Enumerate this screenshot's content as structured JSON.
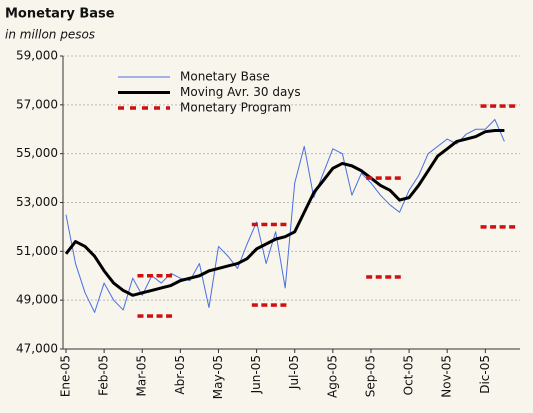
{
  "chart_data": {
    "type": "line",
    "title": "Monetary Base",
    "subtitle": "in millon pesos",
    "categories": [
      "Ene-05",
      null,
      null,
      null,
      "Feb-05",
      null,
      null,
      null,
      "Mar-05",
      null,
      null,
      null,
      "Abr-05",
      null,
      null,
      null,
      "May-05",
      null,
      null,
      null,
      "Jun-05",
      null,
      null,
      null,
      "Jul-05",
      null,
      null,
      null,
      "Ago-05",
      null,
      null,
      null,
      "Sep-05",
      null,
      null,
      null,
      "Oct-05",
      null,
      null,
      null,
      "Nov-05",
      null,
      null,
      null,
      "Dic-05",
      null,
      null,
      null
    ],
    "series": [
      {
        "name": "Monetary Base",
        "color": "#4a6fe0",
        "style": "thin",
        "values": [
          52500,
          50500,
          49300,
          48500,
          49700,
          49000,
          48600,
          49900,
          49200,
          50000,
          49700,
          50100,
          49900,
          49800,
          50500,
          48700,
          51200,
          50800,
          50300,
          51300,
          52200,
          50500,
          51800,
          49500,
          53800,
          55300,
          53200,
          54200,
          55200,
          55000,
          53300,
          54200,
          53800,
          53300,
          52900,
          52600,
          53500,
          54100,
          55000,
          55300,
          55600,
          55400,
          55800,
          56000,
          56000,
          56400,
          55500,
          null
        ]
      },
      {
        "name": "Moving Avr. 30 days",
        "color": "#000000",
        "style": "thick",
        "values": [
          50900,
          51400,
          51200,
          50800,
          50200,
          49700,
          49400,
          49200,
          49300,
          49400,
          49500,
          49600,
          49800,
          49900,
          50000,
          50200,
          50300,
          50400,
          50500,
          50700,
          51100,
          51300,
          51500,
          51600,
          51800,
          52600,
          53400,
          53900,
          54400,
          54600,
          54500,
          54300,
          54000,
          53700,
          53500,
          53100,
          53200,
          53700,
          54300,
          54900,
          55200,
          55500,
          55600,
          55700,
          55900,
          55950,
          55950,
          null
        ]
      },
      {
        "name": "Monetary Program",
        "color": "#d01010",
        "style": "dashed",
        "values": [
          null,
          null,
          null,
          null,
          null,
          null,
          null,
          null,
          50000,
          50000,
          50000,
          50000,
          null,
          null,
          null,
          null,
          null,
          null,
          null,
          null,
          52100,
          52100,
          52100,
          52100,
          null,
          null,
          null,
          null,
          null,
          null,
          null,
          null,
          54000,
          54000,
          54000,
          54000,
          null,
          null,
          null,
          null,
          null,
          null,
          null,
          null,
          56950,
          56950,
          56950,
          56950
        ],
        "lower": [
          null,
          null,
          null,
          null,
          null,
          null,
          null,
          null,
          48350,
          48350,
          48350,
          48350,
          null,
          null,
          null,
          null,
          null,
          null,
          null,
          null,
          48800,
          48800,
          48800,
          48800,
          null,
          null,
          null,
          null,
          null,
          null,
          null,
          null,
          49950,
          49950,
          49950,
          49950,
          null,
          null,
          null,
          null,
          null,
          null,
          null,
          null,
          52000,
          52000,
          52000,
          52000
        ]
      }
    ],
    "ylim": [
      47000,
      59000
    ],
    "yticks": [
      {
        "value": 47000,
        "label": "47,000"
      },
      {
        "value": 49000,
        "label": "49,000"
      },
      {
        "value": 51000,
        "label": "51,000"
      },
      {
        "value": 53000,
        "label": "53,000"
      },
      {
        "value": 55000,
        "label": "55,000"
      },
      {
        "value": 57000,
        "label": "57,000"
      },
      {
        "value": 59000,
        "label": "59,000"
      }
    ],
    "grid": true,
    "legend": "upper left"
  }
}
